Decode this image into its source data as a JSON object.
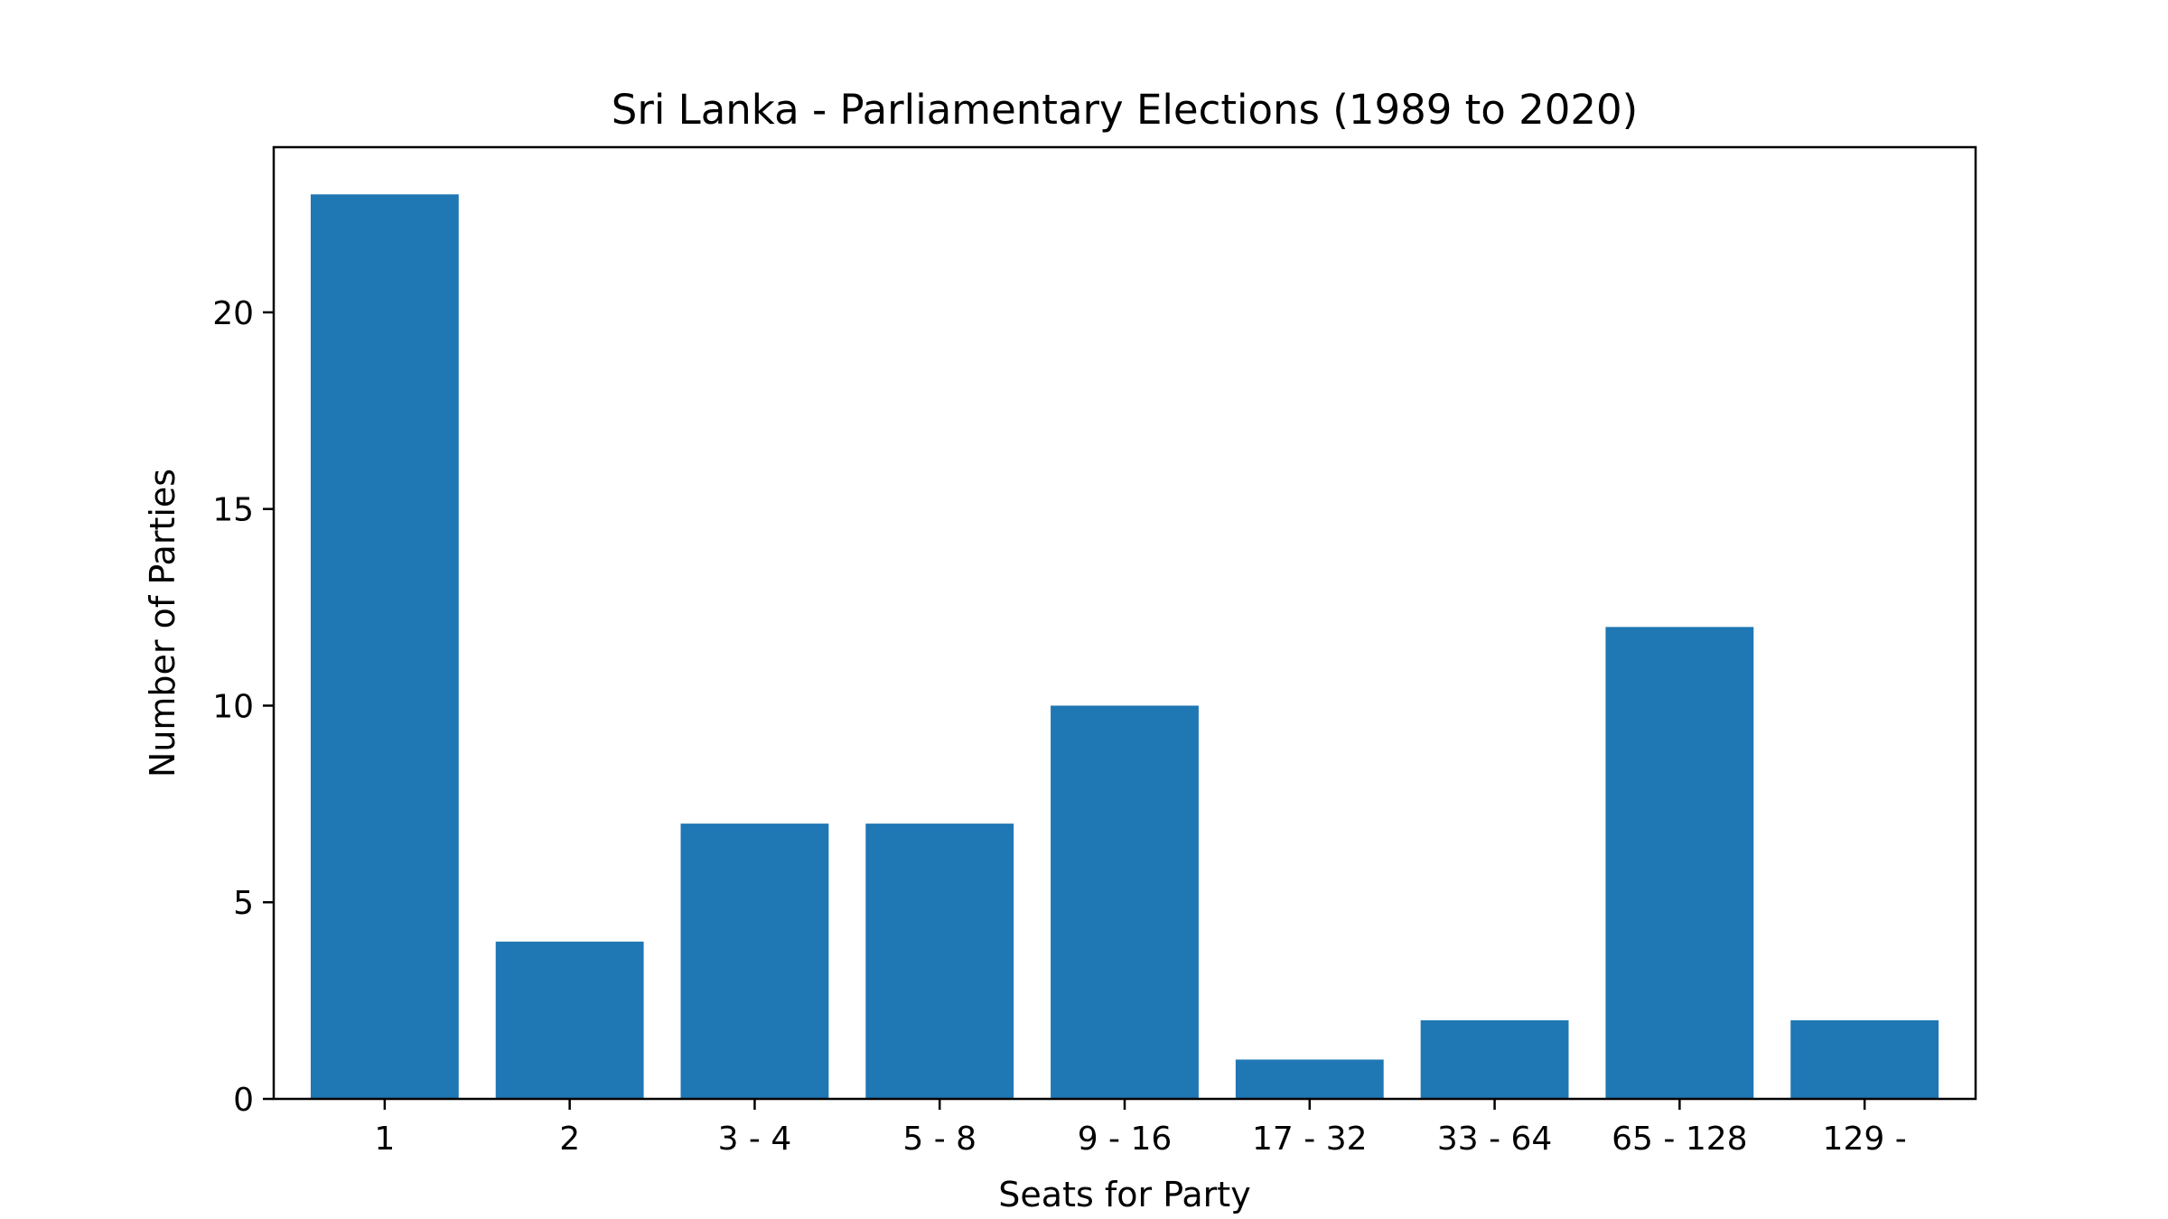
{
  "chart_data": {
    "type": "bar",
    "title": "Sri Lanka - Parliamentary Elections (1989 to 2020)",
    "xlabel": "Seats for Party",
    "ylabel": "Number of Parties",
    "categories": [
      "1",
      "2",
      "3 - 4",
      "5 - 8",
      "9 - 16",
      "17 - 32",
      "33 - 64",
      "65 - 128",
      "129 -"
    ],
    "values": [
      23,
      4,
      7,
      7,
      10,
      1,
      2,
      12,
      2
    ],
    "ylim": [
      0,
      24.2
    ],
    "yticks": [
      0,
      5,
      10,
      15,
      20
    ],
    "grid": false,
    "legend": "none",
    "bar_color": "#1f77b4"
  }
}
